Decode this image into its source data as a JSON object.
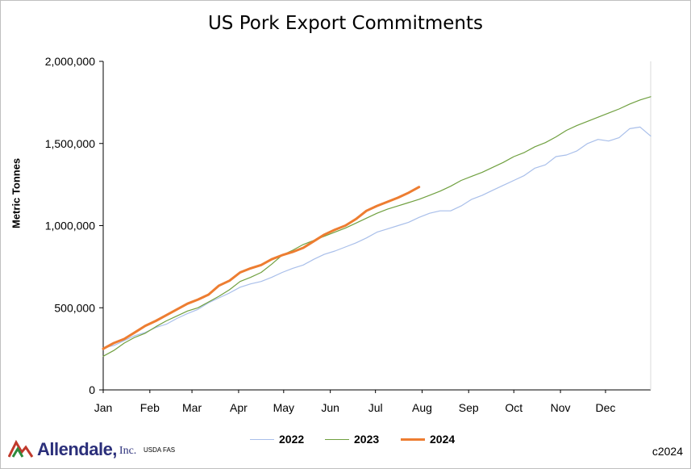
{
  "chart_data": {
    "type": "line",
    "title": "US Pork Export Commitments",
    "ylabel": "Metric Tonnes",
    "xlabel": "",
    "ylim": [
      0,
      2000000
    ],
    "yticks": [
      0,
      500000,
      1000000,
      1500000,
      2000000
    ],
    "ytick_labels": [
      "0",
      "500,000",
      "1,000,000",
      "1,500,000",
      "2,000,000"
    ],
    "x_unit": "week of year",
    "xlim": [
      0,
      52
    ],
    "month_labels": [
      "Jan",
      "Feb",
      "Mar",
      "Apr",
      "May",
      "Jun",
      "Jul",
      "Aug",
      "Sep",
      "Oct",
      "Nov",
      "Dec"
    ],
    "month_positions": [
      0,
      4.43,
      8.43,
      12.86,
      17.14,
      21.57,
      25.86,
      30.29,
      34.71,
      39,
      43.43,
      47.71
    ],
    "grid": false,
    "legend_position": "bottom",
    "series": [
      {
        "name": "2022",
        "color": "#a9bfea",
        "width": 1.2,
        "values": [
          255000,
          270000,
          300000,
          330000,
          350000,
          380000,
          400000,
          435000,
          465000,
          490000,
          530000,
          560000,
          590000,
          625000,
          645000,
          660000,
          685000,
          715000,
          740000,
          760000,
          795000,
          825000,
          845000,
          870000,
          895000,
          925000,
          960000,
          980000,
          1000000,
          1020000,
          1050000,
          1075000,
          1090000,
          1090000,
          1120000,
          1160000,
          1185000,
          1215000,
          1245000,
          1275000,
          1305000,
          1350000,
          1370000,
          1420000,
          1430000,
          1455000,
          1500000,
          1525000,
          1515000,
          1535000,
          1590000,
          1600000,
          1545000
        ]
      },
      {
        "name": "2023",
        "color": "#70a040",
        "width": 1.2,
        "values": [
          205000,
          240000,
          285000,
          320000,
          345000,
          385000,
          420000,
          450000,
          480000,
          500000,
          535000,
          570000,
          610000,
          660000,
          685000,
          715000,
          765000,
          820000,
          850000,
          885000,
          910000,
          935000,
          960000,
          985000,
          1015000,
          1045000,
          1075000,
          1100000,
          1120000,
          1140000,
          1160000,
          1185000,
          1210000,
          1240000,
          1275000,
          1300000,
          1325000,
          1355000,
          1385000,
          1420000,
          1445000,
          1480000,
          1505000,
          1540000,
          1580000,
          1610000,
          1635000,
          1660000,
          1685000,
          1710000,
          1740000,
          1765000,
          1785000
        ]
      },
      {
        "name": "2024",
        "color": "#ed7d31",
        "width": 3,
        "values": [
          250000,
          285000,
          310000,
          350000,
          390000,
          420000,
          455000,
          490000,
          525000,
          550000,
          580000,
          635000,
          665000,
          715000,
          740000,
          760000,
          795000,
          820000,
          840000,
          865000,
          905000,
          945000,
          975000,
          1000000,
          1040000,
          1090000,
          1120000,
          1145000,
          1170000,
          1200000,
          1235000
        ]
      }
    ]
  },
  "branding": {
    "logo_text": "Allendale,",
    "logo_suffix": "Inc.",
    "source": "USDA FAS",
    "copyright": "c2024"
  }
}
